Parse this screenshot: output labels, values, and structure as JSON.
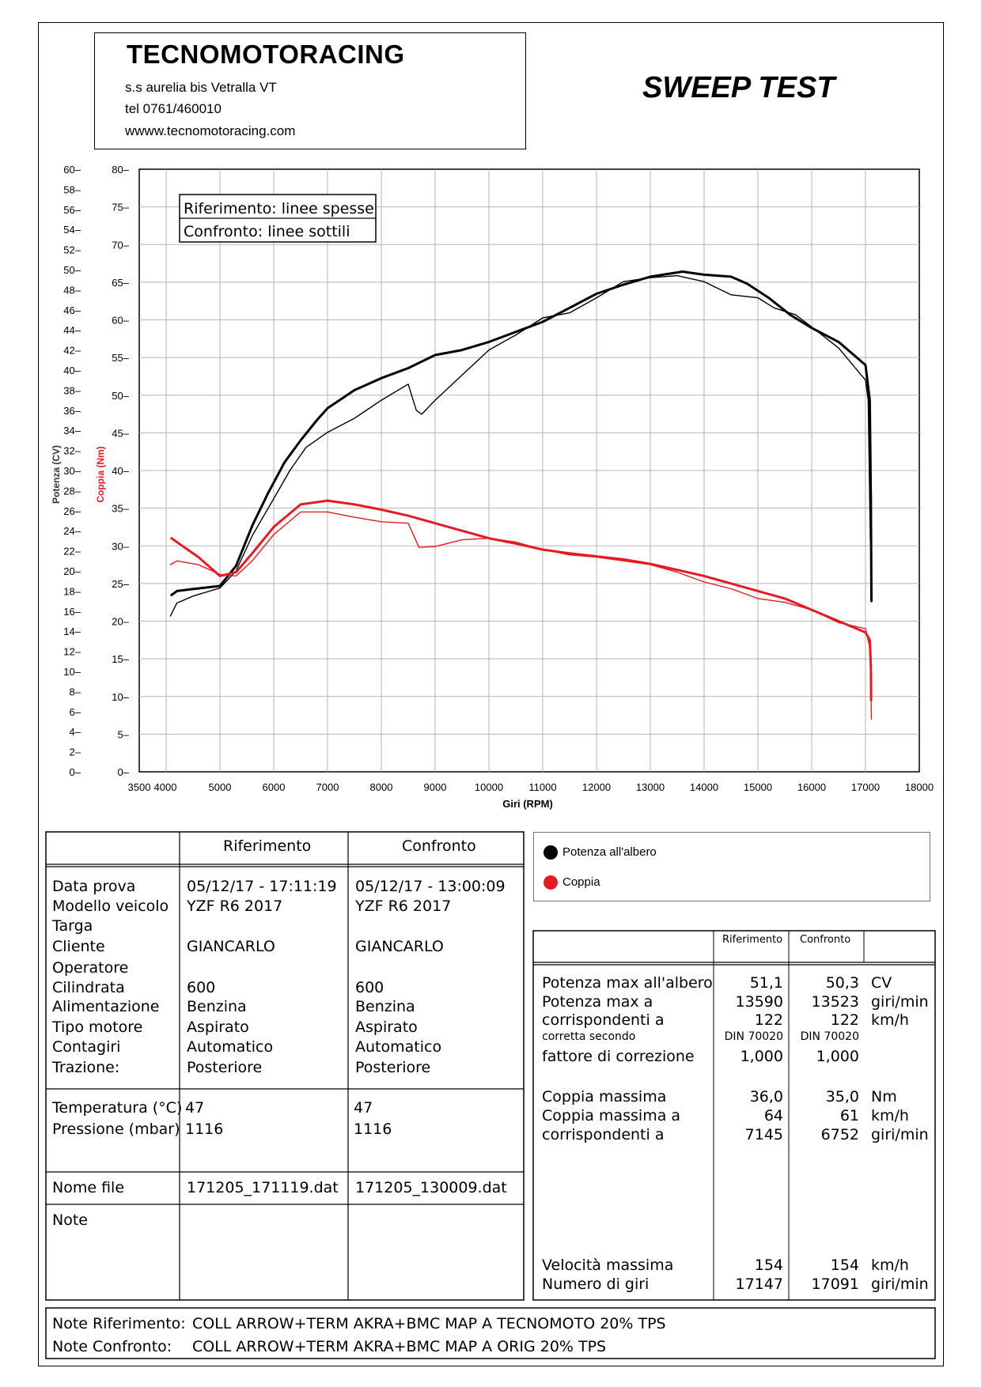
{
  "header": {
    "company": "TECNOMOTORACING",
    "address": "s.s aurelia bis  Vetralla  VT",
    "phone": "tel 0761/460010",
    "web": "wwww.tecnomotoracing.com",
    "title": "SWEEP TEST"
  },
  "chart_data": {
    "type": "line",
    "xlabel": "Giri (RPM)",
    "ylabel_left": "Potenza (CV)",
    "ylabel_right": "Coppia (Nm)",
    "xlim": [
      3500,
      18000
    ],
    "x_ticks": [
      "3500",
      "4000",
      "5000",
      "6000",
      "7000",
      "8000",
      "9000",
      "10000",
      "11000",
      "12000",
      "13000",
      "14000",
      "15000",
      "16000",
      "17000",
      "18000"
    ],
    "ylim_power": [
      0,
      60
    ],
    "ylim_torque": [
      0,
      80
    ],
    "power_ticks": [
      "0",
      "2",
      "4",
      "6",
      "8",
      "10",
      "12",
      "14",
      "16",
      "18",
      "20",
      "22",
      "24",
      "26",
      "28",
      "30",
      "32",
      "34",
      "36",
      "38",
      "40",
      "42",
      "44",
      "46",
      "48",
      "50",
      "52",
      "54",
      "56",
      "58",
      "60"
    ],
    "torque_ticks": [
      "0",
      "5",
      "10",
      "15",
      "20",
      "25",
      "30",
      "35",
      "40",
      "45",
      "50",
      "55",
      "60",
      "65",
      "70",
      "75",
      "80"
    ],
    "legend_note": [
      "Riferimento: linee spesse",
      "Confronto: linee sottili"
    ],
    "series": [
      {
        "name": "Potenza all'albero",
        "run": "Riferimento",
        "axis": "power",
        "color": "#000000",
        "width": 3,
        "points": [
          [
            4100,
            17.6
          ],
          [
            4200,
            18.0
          ],
          [
            4500,
            18.2
          ],
          [
            5000,
            18.5
          ],
          [
            5300,
            20.5
          ],
          [
            5600,
            24.5
          ],
          [
            5900,
            27.8
          ],
          [
            6200,
            30.8
          ],
          [
            6500,
            33.0
          ],
          [
            6800,
            35.0
          ],
          [
            7000,
            36.2
          ],
          [
            7500,
            38.0
          ],
          [
            8000,
            39.2
          ],
          [
            8500,
            40.2
          ],
          [
            9000,
            41.5
          ],
          [
            9500,
            42.0
          ],
          [
            10000,
            42.8
          ],
          [
            10500,
            43.8
          ],
          [
            11000,
            44.8
          ],
          [
            11500,
            46.2
          ],
          [
            12000,
            47.6
          ],
          [
            12500,
            48.5
          ],
          [
            13000,
            49.3
          ],
          [
            13600,
            49.8
          ],
          [
            14000,
            49.5
          ],
          [
            14500,
            49.3
          ],
          [
            14800,
            48.6
          ],
          [
            15200,
            47.2
          ],
          [
            15600,
            45.5
          ],
          [
            16000,
            44.2
          ],
          [
            16500,
            42.8
          ],
          [
            17000,
            40.5
          ],
          [
            17080,
            37.0
          ],
          [
            17100,
            27.0
          ],
          [
            17110,
            17.0
          ]
        ]
      },
      {
        "name": "Potenza all'albero",
        "run": "Confronto",
        "axis": "power",
        "color": "#000000",
        "width": 1.4,
        "points": [
          [
            4080,
            15.5
          ],
          [
            4200,
            16.8
          ],
          [
            4500,
            17.5
          ],
          [
            5000,
            18.3
          ],
          [
            5300,
            20.0
          ],
          [
            5600,
            23.5
          ],
          [
            6000,
            27.2
          ],
          [
            6300,
            30.0
          ],
          [
            6600,
            32.3
          ],
          [
            7000,
            33.8
          ],
          [
            7500,
            35.2
          ],
          [
            8000,
            37.0
          ],
          [
            8500,
            38.6
          ],
          [
            8650,
            36.0
          ],
          [
            8750,
            35.6
          ],
          [
            9000,
            37.0
          ],
          [
            9500,
            39.5
          ],
          [
            10000,
            42.0
          ],
          [
            10500,
            43.5
          ],
          [
            11000,
            45.2
          ],
          [
            11500,
            45.7
          ],
          [
            12000,
            47.2
          ],
          [
            12500,
            48.8
          ],
          [
            13000,
            49.2
          ],
          [
            13500,
            49.4
          ],
          [
            14000,
            48.8
          ],
          [
            14500,
            47.5
          ],
          [
            15000,
            47.2
          ],
          [
            15300,
            46.2
          ],
          [
            15700,
            45.5
          ],
          [
            16000,
            44.3
          ],
          [
            16500,
            42.2
          ],
          [
            17000,
            39.0
          ],
          [
            17050,
            37.0
          ],
          [
            17090,
            23.0
          ]
        ]
      },
      {
        "name": "Coppia",
        "run": "Riferimento",
        "axis": "torque",
        "color": "#e31b23",
        "width": 3,
        "points": [
          [
            4100,
            31.0
          ],
          [
            4300,
            30.0
          ],
          [
            4600,
            28.5
          ],
          [
            5000,
            26.0
          ],
          [
            5300,
            26.5
          ],
          [
            5600,
            29.0
          ],
          [
            6000,
            32.5
          ],
          [
            6500,
            35.5
          ],
          [
            7000,
            36.0
          ],
          [
            7500,
            35.5
          ],
          [
            8000,
            34.8
          ],
          [
            8500,
            34.0
          ],
          [
            9000,
            33.0
          ],
          [
            9500,
            32.0
          ],
          [
            10000,
            31.0
          ],
          [
            10500,
            30.3
          ],
          [
            11000,
            29.5
          ],
          [
            11500,
            29.0
          ],
          [
            12000,
            28.6
          ],
          [
            12500,
            28.2
          ],
          [
            13000,
            27.6
          ],
          [
            13500,
            26.8
          ],
          [
            14000,
            26.0
          ],
          [
            14500,
            25.0
          ],
          [
            15000,
            24.0
          ],
          [
            15500,
            23.0
          ],
          [
            16000,
            21.5
          ],
          [
            16500,
            20.0
          ],
          [
            17000,
            18.5
          ],
          [
            17080,
            17.5
          ],
          [
            17100,
            14.0
          ],
          [
            17105,
            9.5
          ]
        ]
      },
      {
        "name": "Coppia",
        "run": "Confronto",
        "axis": "torque",
        "color": "#e31b23",
        "width": 1.4,
        "points": [
          [
            4080,
            27.5
          ],
          [
            4200,
            28.0
          ],
          [
            4600,
            27.5
          ],
          [
            5000,
            26.2
          ],
          [
            5300,
            26.0
          ],
          [
            5600,
            28.0
          ],
          [
            6000,
            31.5
          ],
          [
            6500,
            34.5
          ],
          [
            7000,
            34.5
          ],
          [
            7500,
            33.8
          ],
          [
            8000,
            33.2
          ],
          [
            8500,
            33.0
          ],
          [
            8700,
            29.8
          ],
          [
            9000,
            29.9
          ],
          [
            9500,
            30.8
          ],
          [
            10000,
            31.0
          ],
          [
            10500,
            30.5
          ],
          [
            11000,
            29.5
          ],
          [
            11500,
            28.8
          ],
          [
            12000,
            28.5
          ],
          [
            12500,
            28.0
          ],
          [
            13000,
            27.5
          ],
          [
            13500,
            26.5
          ],
          [
            14000,
            25.2
          ],
          [
            14500,
            24.3
          ],
          [
            15000,
            23.0
          ],
          [
            15500,
            22.5
          ],
          [
            16000,
            21.5
          ],
          [
            16500,
            19.8
          ],
          [
            17000,
            19.0
          ],
          [
            17080,
            16.5
          ],
          [
            17100,
            11.0
          ],
          [
            17110,
            7.0
          ]
        ]
      }
    ]
  },
  "legend": {
    "power": "Potenza all'albero",
    "torque": "Coppia",
    "power_color": "#000000",
    "torque_color": "#e31b23"
  },
  "info_table": {
    "col_ref": "Riferimento",
    "col_cmp": "Confronto",
    "labels": [
      "Data prova",
      "Modello veicolo",
      "Targa",
      "Cliente",
      "Operatore",
      "Cilindrata",
      "Alimentazione",
      "Tipo motore",
      "Contagiri",
      "Trazione:"
    ],
    "ref": [
      "05/12/17 - 17:11:19",
      "YZF R6 2017",
      "",
      "GIANCARLO",
      "",
      "600",
      "Benzina",
      "Aspirato",
      "Automatico",
      "Posteriore"
    ],
    "cmp": [
      "05/12/17 - 13:00:09",
      "YZF R6 2017",
      "",
      "GIANCARLO",
      "",
      "600",
      "Benzina",
      "Aspirato",
      "Automatico",
      "Posteriore"
    ],
    "env_labels": [
      "Temperatura (°C)",
      "Pressione (mbar)"
    ],
    "env_ref": [
      "47",
      "1116"
    ],
    "env_cmp": [
      "47",
      "1116"
    ],
    "file_label": "Nome file",
    "file_ref": "171205_171119.dat",
    "file_cmp": "171205_130009.dat",
    "note_label": "Note"
  },
  "results_table": {
    "col_ref": "Riferimento",
    "col_cmp": "Confronto",
    "power_max_label": "Potenza max all'albero",
    "power_max_ref": "51,1",
    "power_max_cmp": "50,3",
    "power_max_unit": "CV",
    "power_rpm_label": "Potenza max a",
    "power_rpm_ref": "13590",
    "power_rpm_cmp": "13523",
    "power_rpm_unit": "giri/min",
    "power_kmh_label": "corrispondenti a",
    "power_kmh_ref": "122",
    "power_kmh_cmp": "122",
    "power_kmh_unit": "km/h",
    "corr_label": "corretta secondo",
    "corr_ref": "DIN 70020",
    "corr_cmp": "DIN 70020",
    "factor_label": "fattore di correzione",
    "factor_ref": "1,000",
    "factor_cmp": "1,000",
    "torque_max_label": "Coppia massima",
    "torque_max_ref": "36,0",
    "torque_max_cmp": "35,0",
    "torque_max_unit": "Nm",
    "torque_kmh_label": "Coppia massima a",
    "torque_kmh_ref": "64",
    "torque_kmh_cmp": "61",
    "torque_kmh_unit": "km/h",
    "torque_rpm_label": "corrispondenti a",
    "torque_rpm_ref": "7145",
    "torque_rpm_cmp": "6752",
    "torque_rpm_unit": "giri/min",
    "speed_label": "Velocità massima",
    "speed_ref": "154",
    "speed_cmp": "154",
    "speed_unit": "km/h",
    "rpm_label": "Numero di giri",
    "rpm_ref": "17147",
    "rpm_cmp": "17091",
    "rpm_unit": "giri/min"
  },
  "notes": {
    "ref_label": "Note Riferimento:",
    "ref_text": "COLL ARROW+TERM AKRA+BMC MAP  A TECNOMOTO 20% TPS",
    "cmp_label": "Note Confronto:",
    "cmp_text": "COLL ARROW+TERM AKRA+BMC MAP  A ORIG 20% TPS"
  }
}
